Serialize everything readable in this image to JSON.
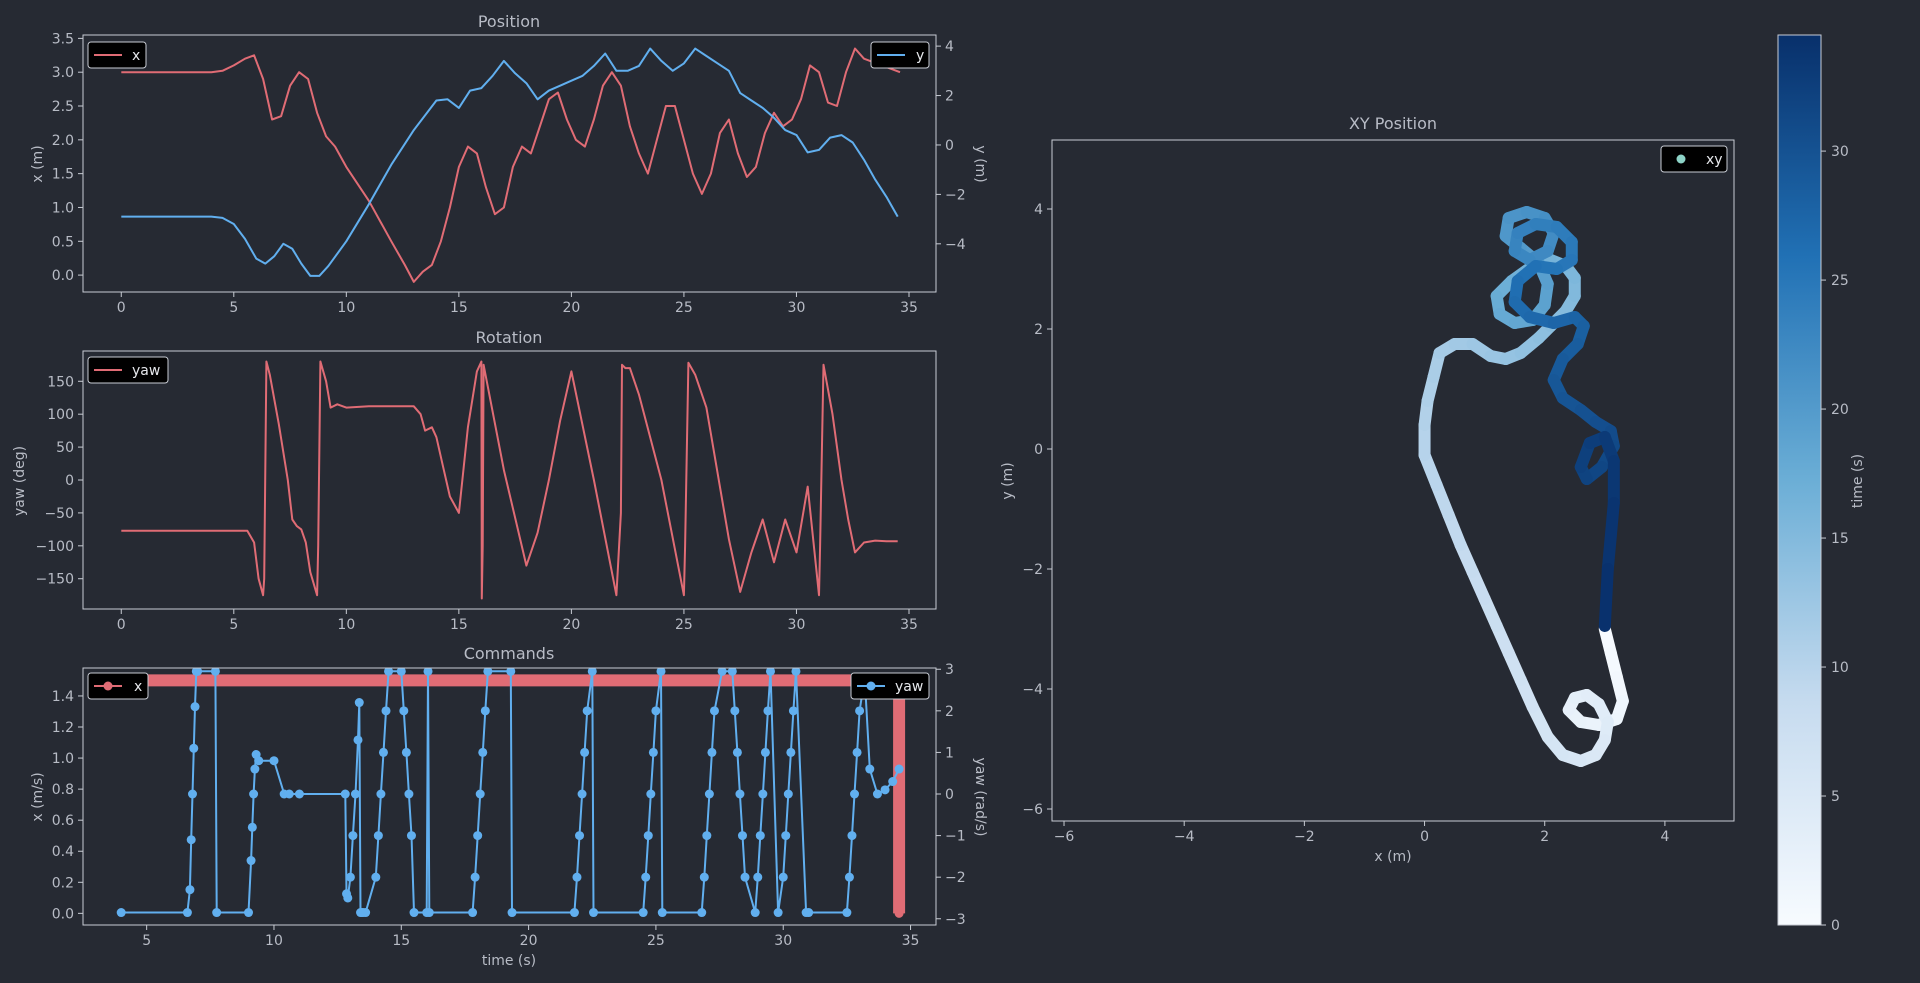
{
  "colors": {
    "background": "#262a33",
    "axis": "#c8ccd4",
    "text": "#b8bcc6",
    "red": "#e06c75",
    "blue": "#61afef",
    "xy_marker": "#8dd3c7"
  },
  "chart_data": [
    {
      "id": "position",
      "type": "line",
      "title": "Position",
      "xlabel": "",
      "ylabel": "x (m)",
      "ylabel_right": "y (m)",
      "xlim": [
        -1.7,
        36.2
      ],
      "ylim": [
        -0.25,
        3.55
      ],
      "ylim_right": [
        -5.95,
        4.45
      ],
      "xticks": [
        "0",
        "5",
        "10",
        "15",
        "20",
        "25",
        "30",
        "35"
      ],
      "yticks": [
        "0.0",
        "0.5",
        "1.0",
        "1.5",
        "2.0",
        "2.5",
        "3.0",
        "3.5"
      ],
      "yticks_right": [
        "−4",
        "−2",
        "0",
        "2",
        "4"
      ],
      "legend_left": "x",
      "legend_right": "y",
      "grid": false,
      "series": [
        {
          "name": "x",
          "axis": "left",
          "color": "#e06c75",
          "x": [
            0,
            1,
            2,
            3,
            4,
            4.5,
            5,
            5.5,
            5.9,
            6.3,
            6.7,
            7.1,
            7.5,
            7.9,
            8.3,
            8.7,
            9.1,
            9.5,
            10,
            11,
            12,
            12.6,
            13,
            13.4,
            13.8,
            14.2,
            14.6,
            15,
            15.4,
            15.8,
            16.2,
            16.6,
            17,
            17.4,
            17.8,
            18.2,
            18.6,
            19,
            19.4,
            19.8,
            20.2,
            20.6,
            21,
            21.4,
            21.8,
            22.2,
            22.6,
            23,
            23.4,
            23.8,
            24.2,
            24.6,
            25,
            25.4,
            25.8,
            26.2,
            26.6,
            27,
            27.4,
            27.8,
            28.2,
            28.6,
            29,
            29.4,
            29.8,
            30.2,
            30.6,
            31,
            31.4,
            31.8,
            32.2,
            32.6,
            33,
            33.4,
            33.8,
            34.2,
            34.6
          ],
          "y": [
            3.0,
            3.0,
            3.0,
            3.0,
            3.0,
            3.02,
            3.1,
            3.2,
            3.25,
            2.9,
            2.3,
            2.35,
            2.8,
            3.0,
            2.9,
            2.4,
            2.05,
            1.9,
            1.6,
            1.1,
            0.5,
            0.15,
            -0.1,
            0.05,
            0.15,
            0.5,
            1.0,
            1.6,
            1.9,
            1.8,
            1.3,
            0.9,
            1.0,
            1.6,
            1.9,
            1.8,
            2.2,
            2.6,
            2.7,
            2.3,
            2.0,
            1.9,
            2.3,
            2.8,
            3.0,
            2.8,
            2.2,
            1.8,
            1.5,
            2.0,
            2.5,
            2.5,
            2.0,
            1.5,
            1.2,
            1.5,
            2.1,
            2.3,
            1.8,
            1.45,
            1.6,
            2.1,
            2.4,
            2.2,
            2.3,
            2.6,
            3.1,
            3.0,
            2.55,
            2.5,
            3.0,
            3.35,
            3.2,
            3.15,
            3.1,
            3.05,
            3.0
          ]
        },
        {
          "name": "y",
          "axis": "right",
          "color": "#61afef",
          "x": [
            0,
            1,
            2,
            3,
            4,
            4.5,
            5,
            5.5,
            6,
            6.4,
            6.8,
            7.2,
            7.6,
            8,
            8.4,
            8.8,
            9.2,
            10,
            11,
            12,
            13,
            14,
            14.5,
            15,
            15.5,
            16,
            16.5,
            17,
            17.5,
            18,
            18.5,
            19,
            19.5,
            20,
            20.5,
            21,
            21.5,
            22,
            22.5,
            23,
            23.5,
            24,
            24.5,
            25,
            25.5,
            26,
            26.5,
            27,
            27.5,
            28,
            28.5,
            29,
            29.5,
            30,
            30.5,
            31,
            31.5,
            32,
            32.5,
            33,
            33.5,
            34,
            34.5
          ],
          "y": [
            -2.9,
            -2.9,
            -2.9,
            -2.9,
            -2.9,
            -2.95,
            -3.2,
            -3.8,
            -4.6,
            -4.8,
            -4.5,
            -4.0,
            -4.2,
            -4.8,
            -5.3,
            -5.3,
            -4.9,
            -3.9,
            -2.4,
            -0.8,
            0.6,
            1.8,
            1.85,
            1.5,
            2.2,
            2.3,
            2.8,
            3.4,
            2.9,
            2.5,
            1.85,
            2.2,
            2.4,
            2.6,
            2.8,
            3.2,
            3.7,
            3.0,
            3.0,
            3.2,
            3.9,
            3.4,
            3.0,
            3.3,
            3.9,
            3.6,
            3.3,
            3.0,
            2.1,
            1.8,
            1.5,
            1.1,
            0.6,
            0.4,
            -0.3,
            -0.2,
            0.3,
            0.4,
            0.1,
            -0.6,
            -1.4,
            -2.1,
            -2.9
          ]
        }
      ]
    },
    {
      "id": "rotation",
      "type": "line",
      "title": "Rotation",
      "xlabel": "",
      "ylabel": "yaw (deg)",
      "xlim": [
        -1.7,
        36.2
      ],
      "ylim": [
        -196,
        196
      ],
      "xticks": [
        "0",
        "5",
        "10",
        "15",
        "20",
        "25",
        "30",
        "35"
      ],
      "yticks": [
        "−150",
        "−100",
        "−50",
        "0",
        "50",
        "100",
        "150"
      ],
      "legend_left": "yaw",
      "grid": false,
      "series": [
        {
          "name": "yaw",
          "axis": "left",
          "color": "#e06c75",
          "x": [
            0,
            1,
            2,
            3,
            4,
            5,
            5.6,
            5.9,
            6.1,
            6.3,
            6.35,
            6.45,
            6.6,
            7,
            7.4,
            7.6,
            7.8,
            8,
            8.2,
            8.4,
            8.7,
            8.75,
            8.85,
            9.1,
            9.3,
            9.6,
            10,
            11,
            12,
            13,
            13.3,
            13.5,
            13.8,
            14,
            14.3,
            14.6,
            15,
            15.4,
            15.8,
            16,
            16.02,
            16.06,
            16.1,
            17,
            18,
            18.5,
            19,
            19.5,
            20,
            21,
            22,
            22.2,
            22.25,
            22.4,
            22.6,
            23,
            24,
            25,
            25.05,
            25.2,
            25.5,
            26,
            27,
            27.5,
            28,
            28.5,
            29,
            29.5,
            30,
            30.5,
            31,
            31.05,
            31.2,
            31.6,
            32,
            32.3,
            32.6,
            33,
            33.5,
            34,
            34.5
          ],
          "y": [
            -77,
            -77,
            -77,
            -77,
            -77,
            -77,
            -77,
            -95,
            -150,
            -175,
            -150,
            180,
            160,
            85,
            0,
            -60,
            -70,
            -75,
            -95,
            -140,
            -175,
            -100,
            180,
            150,
            110,
            115,
            110,
            112,
            112,
            112,
            100,
            75,
            80,
            65,
            20,
            -25,
            -50,
            80,
            165,
            180,
            -180,
            -100,
            175,
            15,
            -130,
            -80,
            0,
            90,
            165,
            0,
            -175,
            -50,
            175,
            170,
            170,
            130,
            0,
            -175,
            -100,
            178,
            160,
            110,
            -90,
            -170,
            -110,
            -60,
            -125,
            -60,
            -110,
            -10,
            -175,
            -100,
            175,
            100,
            0,
            -60,
            -110,
            -95,
            -92,
            -93,
            -93
          ]
        }
      ]
    },
    {
      "id": "commands",
      "type": "line",
      "title": "Commands",
      "xlabel": "time (s)",
      "ylabel": "x (m/s)",
      "ylabel_right": "yaw (rad/s)",
      "xlim": [
        2.5,
        36.0
      ],
      "ylim": [
        -0.075,
        1.58
      ],
      "ylim_right": [
        -3.15,
        3.03
      ],
      "xticks": [
        "5",
        "10",
        "15",
        "20",
        "25",
        "30",
        "35"
      ],
      "yticks": [
        "0.0",
        "0.2",
        "0.4",
        "0.6",
        "0.8",
        "1.0",
        "1.2",
        "1.4"
      ],
      "yticks_right": [
        "−3",
        "−2",
        "−1",
        "0",
        "1",
        "2",
        "3"
      ],
      "legend_left": "x",
      "legend_right": "yaw",
      "grid": false,
      "series": [
        {
          "name": "x",
          "axis": "left",
          "color": "#e06c75",
          "markers": true,
          "x": [
            4.0,
            34.55,
            34.55
          ],
          "y": [
            1.5,
            1.5,
            0.0
          ]
        },
        {
          "name": "yaw",
          "axis": "right",
          "color": "#61afef",
          "markers": true,
          "x": [
            4.0,
            6.6,
            6.7,
            6.75,
            6.8,
            6.85,
            6.9,
            6.95,
            7.0,
            7.7,
            7.75,
            9.0,
            9.1,
            9.15,
            9.2,
            9.25,
            9.3,
            9.4,
            10.0,
            10.4,
            10.6,
            11.0,
            12.8,
            12.85,
            12.9,
            13.0,
            13.1,
            13.2,
            13.3,
            13.35,
            13.4,
            13.45,
            13.5,
            13.6,
            14.0,
            14.1,
            14.2,
            14.3,
            14.4,
            14.5,
            15.0,
            15.1,
            15.2,
            15.3,
            15.4,
            15.5,
            16.0,
            16.05,
            16.1,
            17.8,
            17.9,
            18.0,
            18.1,
            18.2,
            18.3,
            18.4,
            19.3,
            19.35,
            21.8,
            21.9,
            22.0,
            22.1,
            22.2,
            22.3,
            22.5,
            22.55,
            24.5,
            24.6,
            24.7,
            24.8,
            24.9,
            25.0,
            25.2,
            25.25,
            26.8,
            26.9,
            27.0,
            27.1,
            27.2,
            27.3,
            27.6,
            28.0,
            28.1,
            28.2,
            28.3,
            28.4,
            28.5,
            28.9,
            29.0,
            29.1,
            29.2,
            29.3,
            29.4,
            29.5,
            29.8,
            30.0,
            30.1,
            30.2,
            30.3,
            30.4,
            30.5,
            30.9,
            31.0,
            32.5,
            32.6,
            32.7,
            32.8,
            32.9,
            33.0,
            33.2,
            33.4,
            33.7,
            34.0,
            34.3,
            34.55
          ],
          "y": [
            -2.85,
            -2.85,
            -2.3,
            -1.1,
            0.0,
            1.1,
            2.1,
            2.95,
            2.95,
            2.95,
            -2.85,
            -2.85,
            -1.6,
            -0.8,
            0.0,
            0.6,
            0.95,
            0.8,
            0.8,
            0.0,
            0.0,
            0.0,
            0.0,
            -2.4,
            -2.5,
            -2.0,
            -1.0,
            0.0,
            1.3,
            2.2,
            -2.85,
            -2.85,
            -2.85,
            -2.85,
            -2.0,
            -1.0,
            0.0,
            1.0,
            2.0,
            2.95,
            2.95,
            2.0,
            1.0,
            0.0,
            -1.0,
            -2.85,
            -2.85,
            2.95,
            -2.85,
            -2.85,
            -2.0,
            -1.0,
            0.0,
            1.0,
            2.0,
            2.95,
            2.95,
            -2.85,
            -2.85,
            -2.0,
            -1.0,
            0.0,
            1.0,
            2.0,
            2.95,
            -2.85,
            -2.85,
            -2.0,
            -1.0,
            0.0,
            1.0,
            2.0,
            2.95,
            -2.85,
            -2.85,
            -2.0,
            -1.0,
            0.0,
            1.0,
            2.0,
            2.95,
            2.95,
            2.0,
            1.0,
            0.0,
            -1.0,
            -2.0,
            -2.85,
            -2.0,
            -1.0,
            0.0,
            1.0,
            2.0,
            2.95,
            -2.85,
            -2.0,
            -1.0,
            0.0,
            1.0,
            2.0,
            2.95,
            -2.85,
            -2.85,
            -2.85,
            -2.0,
            -1.0,
            0.0,
            1.0,
            2.0,
            2.8,
            0.6,
            0.0,
            0.1,
            0.3,
            0.6
          ]
        }
      ]
    },
    {
      "id": "xy",
      "type": "line",
      "title": "XY Position",
      "xlabel": "x (m)",
      "ylabel": "y (m)",
      "xlim": [
        -6.2,
        5.15
      ],
      "ylim": [
        -6.2,
        5.15
      ],
      "xticks": [
        "−6",
        "−4",
        "−2",
        "0",
        "2",
        "4"
      ],
      "yticks": [
        "−6",
        "−4",
        "−2",
        "0",
        "2",
        "4"
      ],
      "legend_right": "xy",
      "grid": false,
      "colorbar": {
        "label": "time (s)",
        "ticks": [
          "0",
          "5",
          "10",
          "15",
          "20",
          "25",
          "30"
        ],
        "range": [
          0,
          34.5
        ],
        "colors": [
          "#f7fbff",
          "#08306b"
        ]
      },
      "series": [
        {
          "name": "xy",
          "color_by": "time",
          "x": [
            3.0,
            3.1,
            3.2,
            3.3,
            3.2,
            2.9,
            2.6,
            2.4,
            2.5,
            2.7,
            2.9,
            3.05,
            3.0,
            2.85,
            2.6,
            2.3,
            2.05,
            1.8,
            1.6,
            1.4,
            1.2,
            1.0,
            0.8,
            0.6,
            0.4,
            0.2,
            0.0,
            0.0,
            0.05,
            0.15,
            0.25,
            0.5,
            0.8,
            1.1,
            1.35,
            1.6,
            1.9,
            2.1,
            2.35,
            2.5,
            2.5,
            2.35,
            2.1,
            1.8,
            1.45,
            1.2,
            1.25,
            1.5,
            1.8,
            2.0,
            2.05,
            1.9,
            1.6,
            1.35,
            1.4,
            1.7,
            2.0,
            2.15,
            2.05,
            1.75,
            1.5,
            1.55,
            1.85,
            2.2,
            2.45,
            2.45,
            2.2,
            1.85,
            1.55,
            1.5,
            1.75,
            2.15,
            2.5,
            2.65,
            2.55,
            2.3,
            2.15,
            2.3,
            2.6,
            2.85,
            3.1,
            3.15,
            2.95,
            2.7,
            2.6,
            2.75,
            3.0,
            3.15,
            3.15,
            3.05,
            3.0
          ],
          "y": [
            -3.0,
            -3.4,
            -3.8,
            -4.2,
            -4.5,
            -4.6,
            -4.55,
            -4.35,
            -4.15,
            -4.1,
            -4.25,
            -4.55,
            -4.85,
            -5.1,
            -5.2,
            -5.1,
            -4.8,
            -4.3,
            -3.85,
            -3.4,
            -2.95,
            -2.5,
            -2.05,
            -1.6,
            -1.1,
            -0.6,
            -0.1,
            0.4,
            0.8,
            1.2,
            1.6,
            1.75,
            1.75,
            1.55,
            1.5,
            1.6,
            1.85,
            2.05,
            2.3,
            2.55,
            2.85,
            3.05,
            3.15,
            3.05,
            2.8,
            2.55,
            2.25,
            2.1,
            2.15,
            2.4,
            2.75,
            3.1,
            3.35,
            3.55,
            3.85,
            3.95,
            3.85,
            3.6,
            3.3,
            3.15,
            3.3,
            3.6,
            3.75,
            3.7,
            3.45,
            3.15,
            3.0,
            3.05,
            2.8,
            2.45,
            2.2,
            2.1,
            2.2,
            2.05,
            1.75,
            1.5,
            1.15,
            0.85,
            0.65,
            0.45,
            0.3,
            0.05,
            -0.3,
            -0.5,
            -0.3,
            0.1,
            0.2,
            -0.2,
            -0.9,
            -2.0,
            -2.95
          ]
        }
      ]
    }
  ]
}
